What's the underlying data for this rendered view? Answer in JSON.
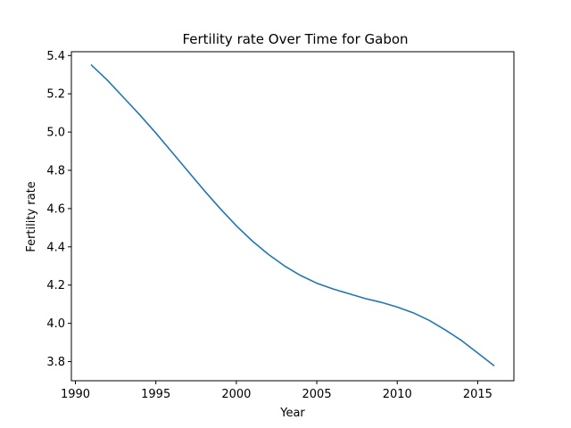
{
  "chart_data": {
    "type": "line",
    "title": "Fertility rate Over Time for Gabon",
    "xlabel": "Year",
    "ylabel": "Fertility rate",
    "xlim": [
      1989.75,
      2017.25
    ],
    "ylim": [
      3.7,
      5.42
    ],
    "xticks": [
      1990,
      1995,
      2000,
      2005,
      2010,
      2015
    ],
    "yticks": [
      3.8,
      4.0,
      4.2,
      4.4,
      4.6,
      4.8,
      5.0,
      5.2,
      5.4
    ],
    "ytick_labels": [
      "3.8",
      "4.0",
      "4.2",
      "4.4",
      "4.6",
      "4.8",
      "5.0",
      "5.2",
      "5.4"
    ],
    "grid": false,
    "series": [
      {
        "color": "#1f77b4",
        "x": [
          1991,
          1992,
          1993,
          1994,
          1995,
          1996,
          1997,
          1998,
          1999,
          2000,
          2001,
          2002,
          2003,
          2004,
          2005,
          2006,
          2007,
          2008,
          2009,
          2010,
          2011,
          2012,
          2013,
          2014,
          2015,
          2016
        ],
        "y": [
          5.35,
          5.27,
          5.18,
          5.09,
          4.995,
          4.895,
          4.795,
          4.695,
          4.6,
          4.51,
          4.43,
          4.36,
          4.3,
          4.25,
          4.21,
          4.18,
          4.155,
          4.13,
          4.11,
          4.085,
          4.055,
          4.015,
          3.965,
          3.91,
          3.845,
          3.78
        ]
      }
    ]
  }
}
